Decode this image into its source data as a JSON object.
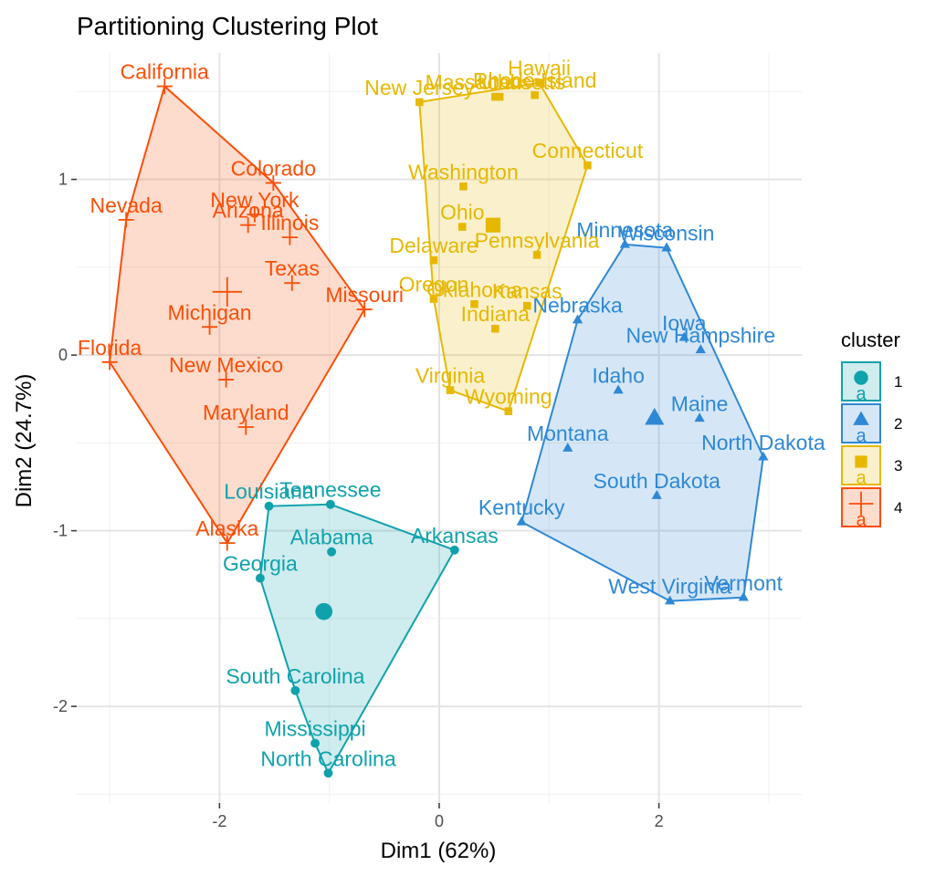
{
  "chart_data": {
    "type": "scatter",
    "title": "Partitioning Clustering Plot",
    "xlabel": "Dim1 (62%)",
    "ylabel": "Dim2 (24.7%)",
    "xlim": [
      -3.3,
      3.3
    ],
    "ylim": [
      -2.55,
      1.72
    ],
    "x_ticks": [
      -2,
      0,
      2
    ],
    "y_ticks": [
      -2,
      -1,
      0,
      1
    ],
    "grid": true,
    "legend": {
      "title": "cluster",
      "position": "right",
      "glyph_text": "a"
    },
    "series": [
      {
        "name": "1",
        "color": "#0FA2AC",
        "marker": "circle",
        "center": [
          -1.05,
          -1.46
        ],
        "points": [
          {
            "label": "Alabama",
            "x": -0.98,
            "y": -1.12
          },
          {
            "label": "Arkansas",
            "x": 0.14,
            "y": -1.11
          },
          {
            "label": "Georgia",
            "x": -1.63,
            "y": -1.27
          },
          {
            "label": "Louisiana",
            "x": -1.55,
            "y": -0.86
          },
          {
            "label": "Mississippi",
            "x": -1.13,
            "y": -2.21
          },
          {
            "label": "North Carolina",
            "x": -1.01,
            "y": -2.38
          },
          {
            "label": "South Carolina",
            "x": -1.31,
            "y": -1.91
          },
          {
            "label": "Tennessee",
            "x": -0.99,
            "y": -0.85
          }
        ]
      },
      {
        "name": "2",
        "color": "#2E88D5",
        "marker": "triangle",
        "center": [
          1.96,
          -0.36
        ],
        "points": [
          {
            "label": "Idaho",
            "x": 1.63,
            "y": -0.2
          },
          {
            "label": "Iowa",
            "x": 2.23,
            "y": 0.1
          },
          {
            "label": "Kentucky",
            "x": 0.75,
            "y": -0.95
          },
          {
            "label": "Maine",
            "x": 2.37,
            "y": -0.36
          },
          {
            "label": "Minnesota",
            "x": 1.69,
            "y": 0.63
          },
          {
            "label": "Montana",
            "x": 1.17,
            "y": -0.53
          },
          {
            "label": "Nebraska",
            "x": 1.26,
            "y": 0.2
          },
          {
            "label": "New Hampshire",
            "x": 2.38,
            "y": 0.03
          },
          {
            "label": "North Dakota",
            "x": 2.95,
            "y": -0.58
          },
          {
            "label": "South Dakota",
            "x": 1.98,
            "y": -0.8
          },
          {
            "label": "Vermont",
            "x": 2.77,
            "y": -1.38
          },
          {
            "label": "West Virginia",
            "x": 2.1,
            "y": -1.4
          },
          {
            "label": "Wisconsin",
            "x": 2.07,
            "y": 0.61
          }
        ]
      },
      {
        "name": "3",
        "color": "#E7B800",
        "marker": "square",
        "center": [
          0.49,
          0.74
        ],
        "points": [
          {
            "label": "Connecticut",
            "x": 1.35,
            "y": 1.08
          },
          {
            "label": "Delaware",
            "x": -0.05,
            "y": 0.54
          },
          {
            "label": "Hawaii",
            "x": 0.91,
            "y": 1.55
          },
          {
            "label": "Indiana",
            "x": 0.51,
            "y": 0.15
          },
          {
            "label": "Kansas",
            "x": 0.8,
            "y": 0.28
          },
          {
            "label": "Massachusetts",
            "x": 0.51,
            "y": 1.47
          },
          {
            "label": "New Jersey",
            "x": -0.18,
            "y": 1.44
          },
          {
            "label": "Ohio",
            "x": 0.21,
            "y": 0.73
          },
          {
            "label": "Oklahoma",
            "x": 0.32,
            "y": 0.29
          },
          {
            "label": "Oregon",
            "x": -0.05,
            "y": 0.32
          },
          {
            "label": "Pennsylvania",
            "x": 0.89,
            "y": 0.57
          },
          {
            "label": "Rhode Island",
            "x": 0.87,
            "y": 1.48
          },
          {
            "label": "Utah",
            "x": 0.55,
            "y": 1.47
          },
          {
            "label": "Virginia",
            "x": 0.1,
            "y": -0.2
          },
          {
            "label": "Washington",
            "x": 0.22,
            "y": 0.96
          },
          {
            "label": "Wyoming",
            "x": 0.63,
            "y": -0.32
          }
        ]
      },
      {
        "name": "4",
        "color": "#FC4E07",
        "marker": "cross",
        "center": [
          -1.93,
          0.36
        ],
        "points": [
          {
            "label": "Alaska",
            "x": -1.93,
            "y": -1.07
          },
          {
            "label": "Arizona",
            "x": -1.74,
            "y": 0.74
          },
          {
            "label": "California",
            "x": -2.5,
            "y": 1.53
          },
          {
            "label": "Colorado",
            "x": -1.51,
            "y": 0.98
          },
          {
            "label": "Florida",
            "x": -3.0,
            "y": -0.04
          },
          {
            "label": "Illinois",
            "x": -1.36,
            "y": 0.67
          },
          {
            "label": "Maryland",
            "x": -1.76,
            "y": -0.41
          },
          {
            "label": "Michigan",
            "x": -2.09,
            "y": 0.16
          },
          {
            "label": "Missouri",
            "x": -0.68,
            "y": 0.26
          },
          {
            "label": "Nevada",
            "x": -2.85,
            "y": 0.77
          },
          {
            "label": "New Mexico",
            "x": -1.94,
            "y": -0.14
          },
          {
            "label": "New York",
            "x": -1.68,
            "y": 0.8
          },
          {
            "label": "Texas",
            "x": -1.34,
            "y": 0.41
          }
        ]
      }
    ]
  }
}
